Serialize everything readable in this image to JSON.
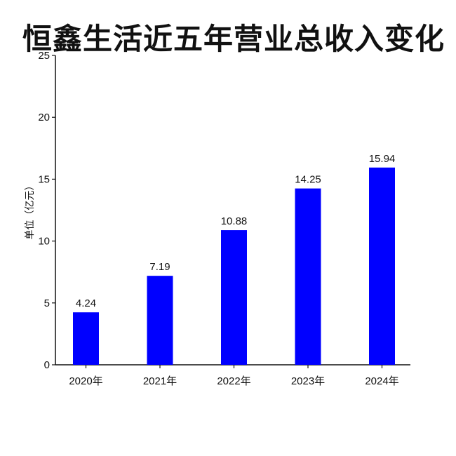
{
  "chart_data": {
    "type": "bar",
    "title": "恒鑫生活近五年营业总收入变化",
    "ylabel": "单位（亿元）",
    "xlabel": "",
    "categories": [
      "2020年",
      "2021年",
      "2022年",
      "2023年",
      "2024年"
    ],
    "values": [
      4.24,
      7.19,
      10.88,
      14.25,
      15.94
    ],
    "value_labels": [
      "4.24",
      "7.19",
      "10.88",
      "14.25",
      "15.94"
    ],
    "ylim": [
      0,
      25
    ],
    "yticks": [
      "0",
      "5",
      "10",
      "15",
      "20",
      "25"
    ],
    "grid": false,
    "legend": "none",
    "bar_color": "#0000ff"
  }
}
